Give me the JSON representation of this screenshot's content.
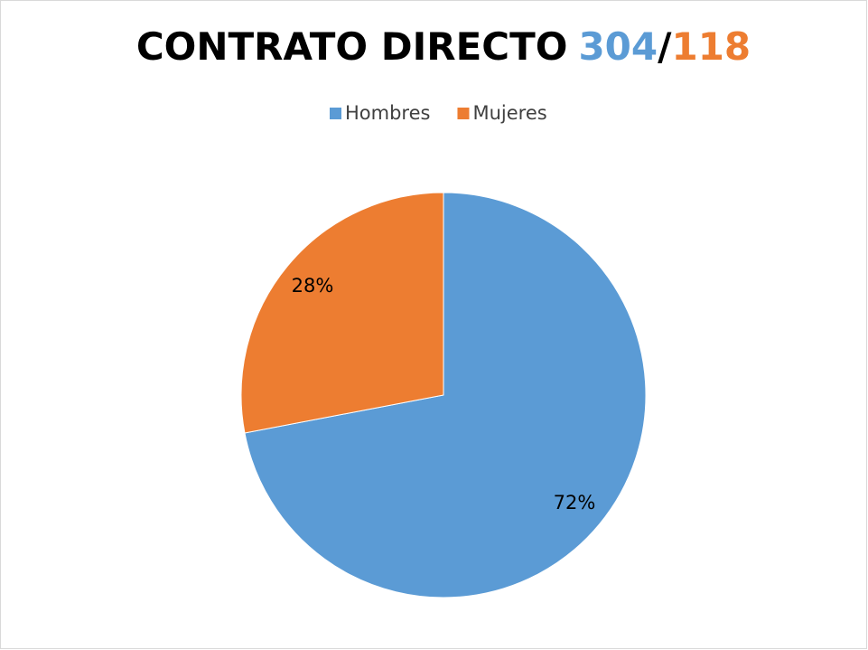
{
  "chart_data": {
    "type": "pie",
    "title_parts": [
      {
        "text": "CONTRATO DIRECTO",
        "color": "#000000"
      },
      {
        "text": "304",
        "color": "#5b9bd5"
      },
      {
        "text": "/",
        "color": "#000000"
      },
      {
        "text": "118",
        "color": "#ed7d31"
      }
    ],
    "categories": [
      "Hombres",
      "Mujeres"
    ],
    "values": [
      72,
      28
    ],
    "value_labels": [
      "72%",
      "28%"
    ],
    "colors": [
      "#5b9bd5",
      "#ed7d31"
    ],
    "legend": "top"
  }
}
